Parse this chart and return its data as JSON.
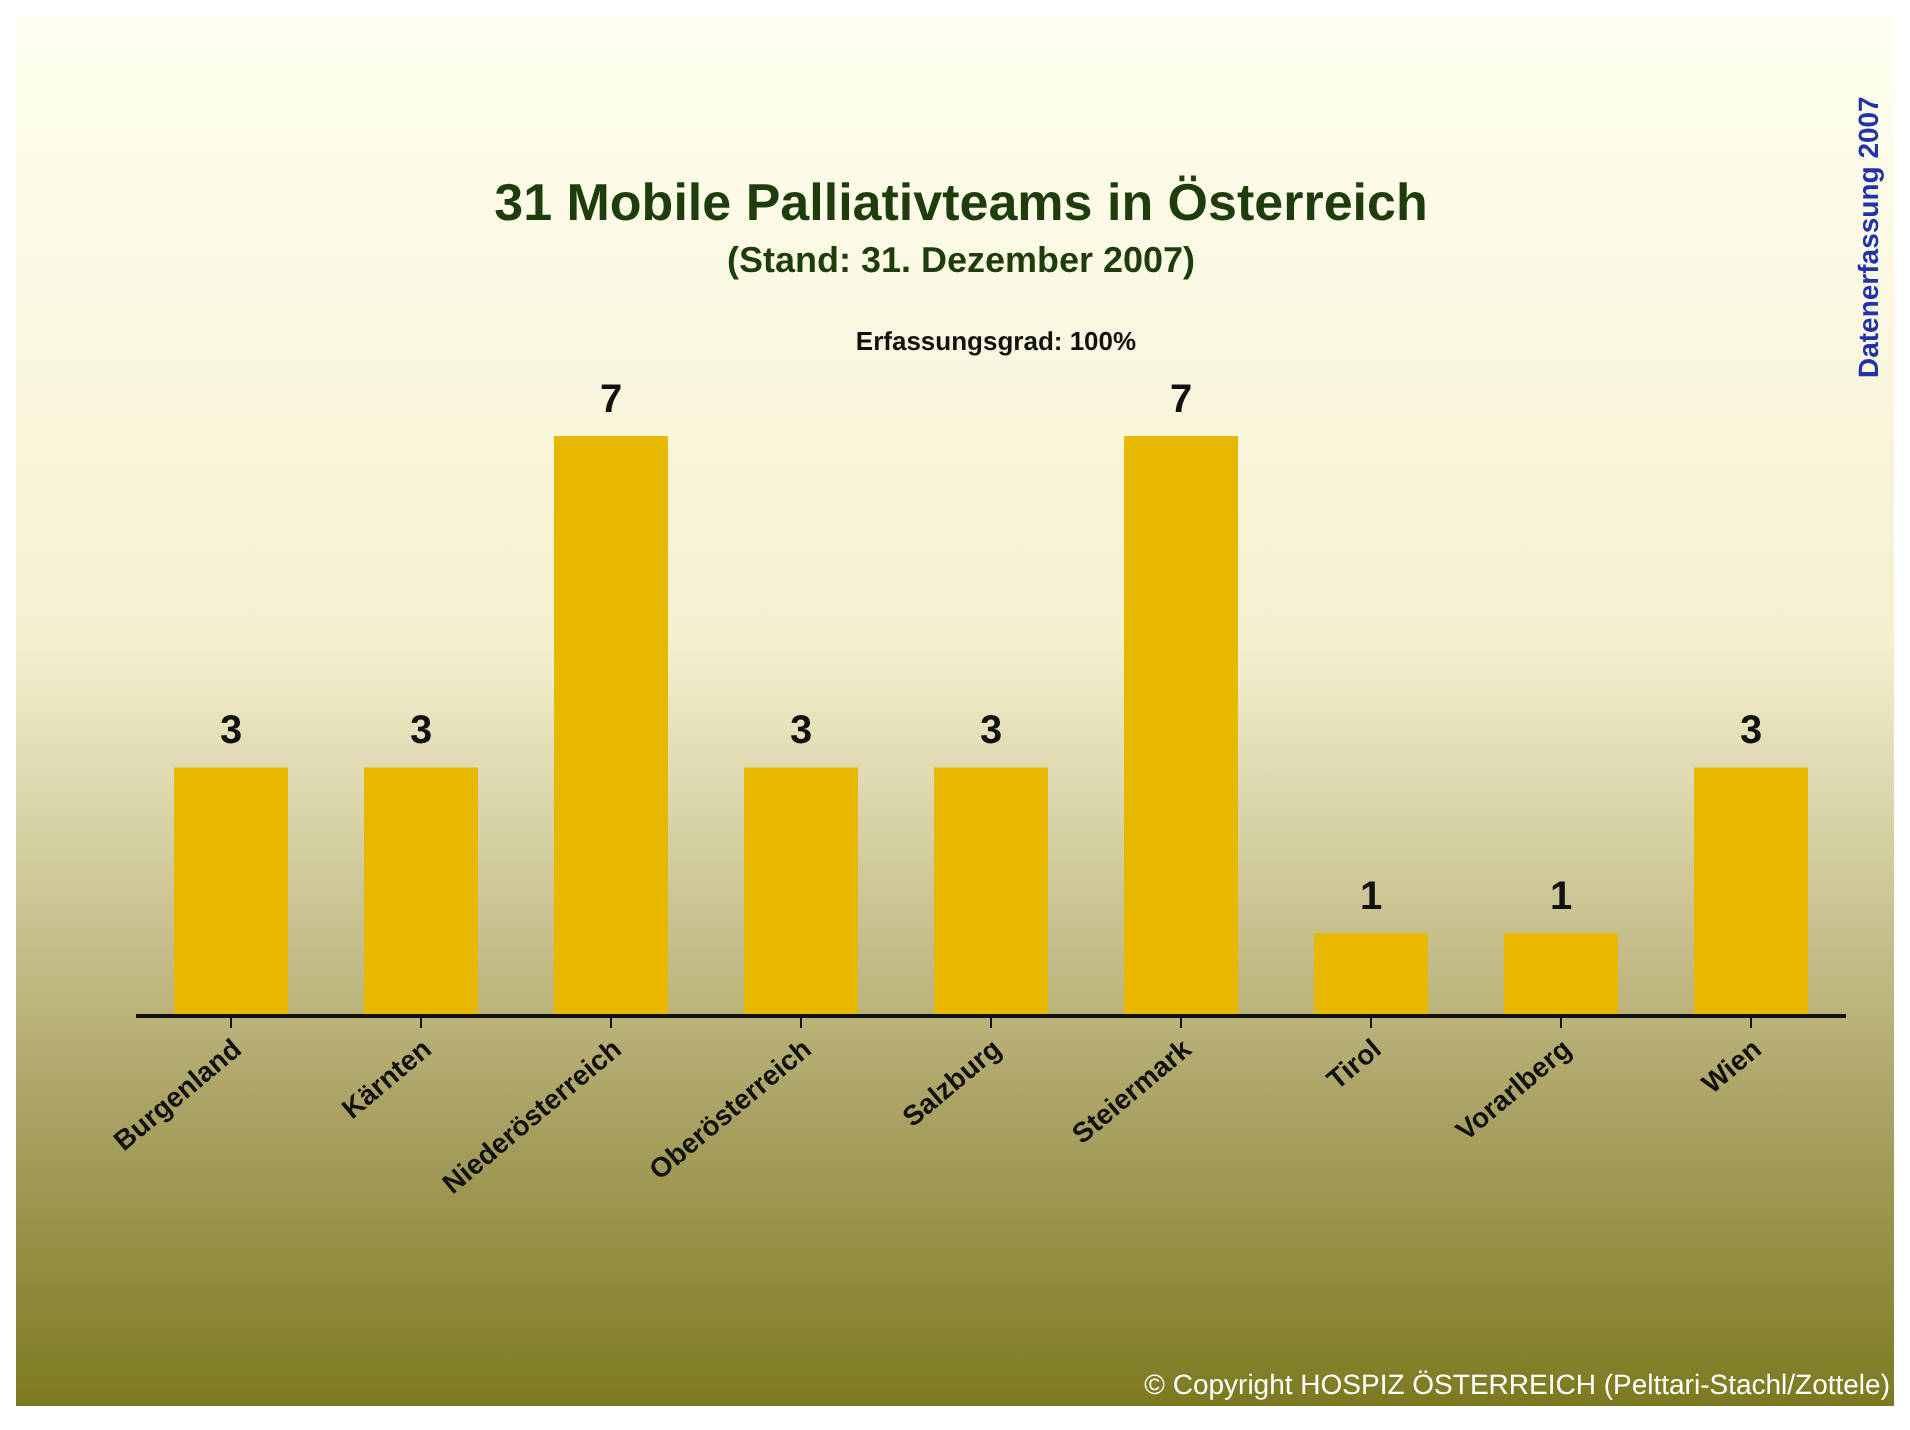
{
  "chart_data": {
    "type": "bar",
    "title": "31 Mobile Palliativteams in Österreich",
    "subtitle": "(Stand: 31. Dezember 2007)",
    "categories": [
      "Burgenland",
      "Kärnten",
      "Niederösterreich",
      "Oberösterreich",
      "Salzburg",
      "Steiermark",
      "Tirol",
      "Vorarlberg",
      "Wien"
    ],
    "values": [
      3,
      3,
      7,
      3,
      3,
      7,
      1,
      1,
      3
    ],
    "color": "#e8b800",
    "data_labels": true,
    "annotations": [
      "Erfassungsgrad: 100%",
      "Datenerfassung 2007",
      "© Copyright HOSPIZ ÖSTERREICH (Pelttari-Stachl/Zottele)"
    ]
  }
}
